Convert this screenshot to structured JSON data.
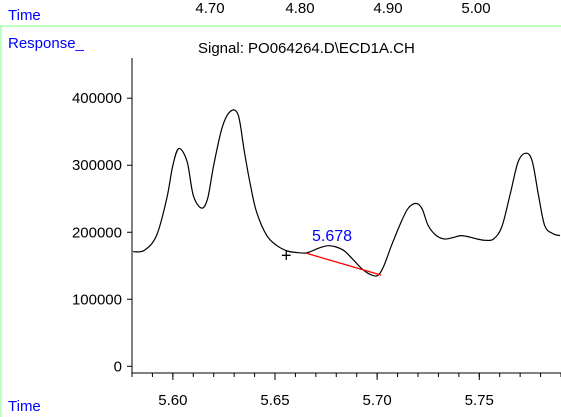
{
  "top_strip": {
    "label": "Time",
    "ticks": [
      "4.70",
      "4.80",
      "4.90",
      "5.00"
    ]
  },
  "chart_data": {
    "type": "line",
    "title": "Signal: PO064264.D\\ECD1A.CH",
    "ylabel": "Response_",
    "xlabel": "Time",
    "xlim": [
      5.58,
      5.79
    ],
    "ylim": [
      -10000,
      460000
    ],
    "x_ticks": [
      5.6,
      5.65,
      5.7,
      5.75
    ],
    "x_tick_labels": [
      "5.60",
      "5.65",
      "5.70",
      "5.75"
    ],
    "y_ticks": [
      0,
      100000,
      200000,
      300000,
      400000
    ],
    "y_tick_labels": [
      "0",
      "100000",
      "200000",
      "300000",
      "400000"
    ],
    "series": [
      {
        "color": "#000000",
        "x": [
          5.5805,
          5.586,
          5.592,
          5.597,
          5.6,
          5.603,
          5.607,
          5.61,
          5.614,
          5.617,
          5.62,
          5.624,
          5.628,
          5.632,
          5.635,
          5.638,
          5.641,
          5.646,
          5.651,
          5.656,
          5.66,
          5.665,
          5.668,
          5.672,
          5.676,
          5.68,
          5.684,
          5.688,
          5.692,
          5.696,
          5.7,
          5.703,
          5.707,
          5.711,
          5.715,
          5.719,
          5.722,
          5.725,
          5.729,
          5.733,
          5.737,
          5.741,
          5.745,
          5.749,
          5.753,
          5.757,
          5.761,
          5.765,
          5.769,
          5.773,
          5.776,
          5.779,
          5.782,
          5.786,
          5.7895
        ],
        "y": [
          171000,
          173000,
          195000,
          250000,
          300000,
          325000,
          305000,
          255000,
          236000,
          250000,
          300000,
          355000,
          380000,
          375000,
          320000,
          270000,
          230000,
          195000,
          180000,
          172000,
          170000,
          169000,
          172000,
          177000,
          180000,
          178000,
          172000,
          160000,
          147000,
          138000,
          135000,
          148000,
          180000,
          210000,
          235000,
          243000,
          235000,
          210000,
          195000,
          190000,
          192000,
          195000,
          193000,
          190000,
          188000,
          190000,
          208000,
          255000,
          305000,
          318000,
          305000,
          255000,
          210000,
          198000,
          195000
        ]
      }
    ],
    "annotation": {
      "label": "5.678",
      "label_color": "#0000ff",
      "marker": "+",
      "marker_x": 5.6555,
      "marker_y": 165000,
      "baseline_color": "#ff0000",
      "baseline_start": [
        5.665,
        169000
      ],
      "baseline_end": [
        5.702,
        136000
      ]
    }
  },
  "colors": {
    "accent_text": "#0000ff",
    "frame_line": "#7fff7f",
    "plot_line": "#000000"
  }
}
